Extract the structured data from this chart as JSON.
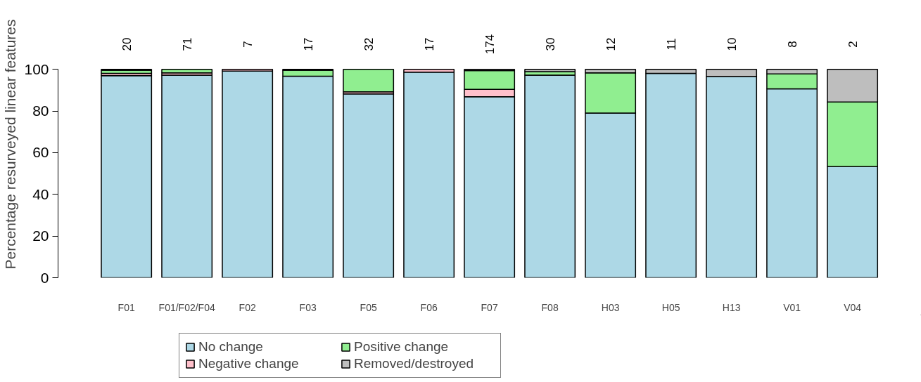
{
  "chart_data": {
    "type": "bar",
    "stacked": true,
    "ylabel": "Percentage resurveyed linear features",
    "categories": [
      "F01",
      "F01/F02/F04",
      "F02",
      "F03",
      "F05",
      "F06",
      "F07",
      "F08",
      "H03",
      "H05",
      "H13",
      "V01",
      "V04"
    ],
    "series": [
      {
        "name": "No change",
        "color": "#add8e6",
        "values": [
          96.9,
          97.2,
          99.1,
          96.7,
          88.2,
          98.6,
          86.8,
          97.2,
          79,
          98,
          96.5,
          90.6,
          53.3
        ]
      },
      {
        "name": "Negative change",
        "color": "#ffc0cb",
        "values": [
          1.1,
          1.1,
          0.9,
          0,
          1,
          1.4,
          3.6,
          0,
          0,
          0,
          0,
          0,
          0
        ]
      },
      {
        "name": "Positive change",
        "color": "#90ee90",
        "values": [
          1.5,
          1.7,
          0,
          2.8,
          10.8,
          0,
          9,
          1.7,
          19.3,
          0,
          0,
          7.2,
          31
        ]
      },
      {
        "name": "Removed/destroyed",
        "color": "#bebebe",
        "values": [
          0.5,
          0,
          0,
          0.5,
          0,
          0,
          0.6,
          1.1,
          1.7,
          2,
          3.5,
          2.2,
          15.7
        ]
      }
    ],
    "annotations": [
      "20",
      "71",
      "7",
      "17",
      "32",
      "17",
      "174",
      "30",
      "12",
      "11",
      "10",
      "8",
      "2"
    ],
    "ylim": [
      0,
      100
    ],
    "yticks": [
      0,
      20,
      40,
      60,
      80,
      100
    ],
    "grid": false,
    "legend": "bottom left"
  }
}
